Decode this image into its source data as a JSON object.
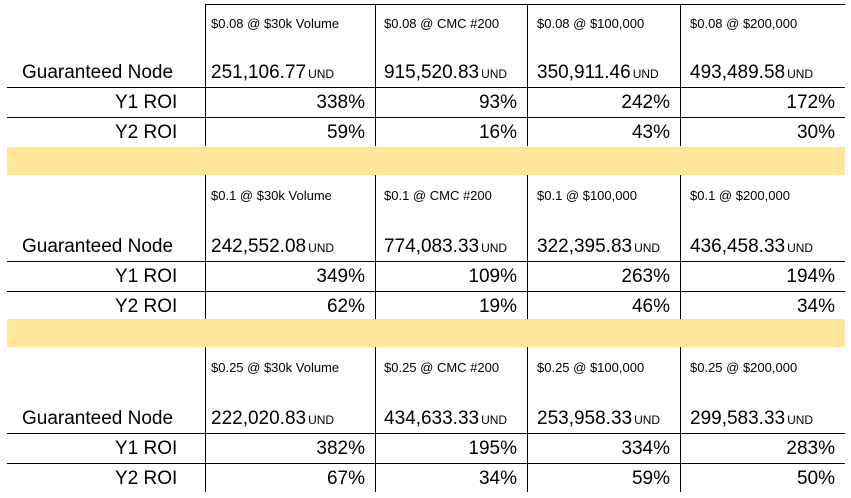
{
  "colors": {
    "separator_band": "#ffe699",
    "grid": "#000000",
    "background": "#ffffff"
  },
  "labels": {
    "guaranteed_node": "Guaranteed Node",
    "y1_roi": "Y1 ROI",
    "y2_roi": "Y2 ROI",
    "unit": "UND"
  },
  "scenarios": [
    {
      "headers": [
        "$0.08 @ $30k Volume",
        "$0.08 @ CMC #200",
        "$0.08 @ $100,000",
        "$0.08 @ $200,000"
      ],
      "guaranteed_node": [
        "251,106.77",
        "915,520.83",
        "350,911.46",
        "493,489.58"
      ],
      "y1_roi": [
        "338%",
        "93%",
        "242%",
        "172%"
      ],
      "y2_roi": [
        "59%",
        "16%",
        "43%",
        "30%"
      ]
    },
    {
      "headers": [
        "$0.1 @ $30k Volume",
        "$0.1 @ CMC #200",
        "$0.1 @ $100,000",
        "$0.1 @ $200,000"
      ],
      "guaranteed_node": [
        "242,552.08",
        "774,083.33",
        "322,395.83",
        "436,458.33"
      ],
      "y1_roi": [
        "349%",
        "109%",
        "263%",
        "194%"
      ],
      "y2_roi": [
        "62%",
        "19%",
        "46%",
        "34%"
      ]
    },
    {
      "headers": [
        "$0.25 @ $30k Volume",
        "$0.25 @ CMC #200",
        "$0.25 @ $100,000",
        "$0.25 @ $200,000"
      ],
      "guaranteed_node": [
        "222,020.83",
        "434,633.33",
        "253,958.33",
        "299,583.33"
      ],
      "y1_roi": [
        "382%",
        "195%",
        "334%",
        "283%"
      ],
      "y2_roi": [
        "67%",
        "34%",
        "59%",
        "50%"
      ]
    }
  ]
}
